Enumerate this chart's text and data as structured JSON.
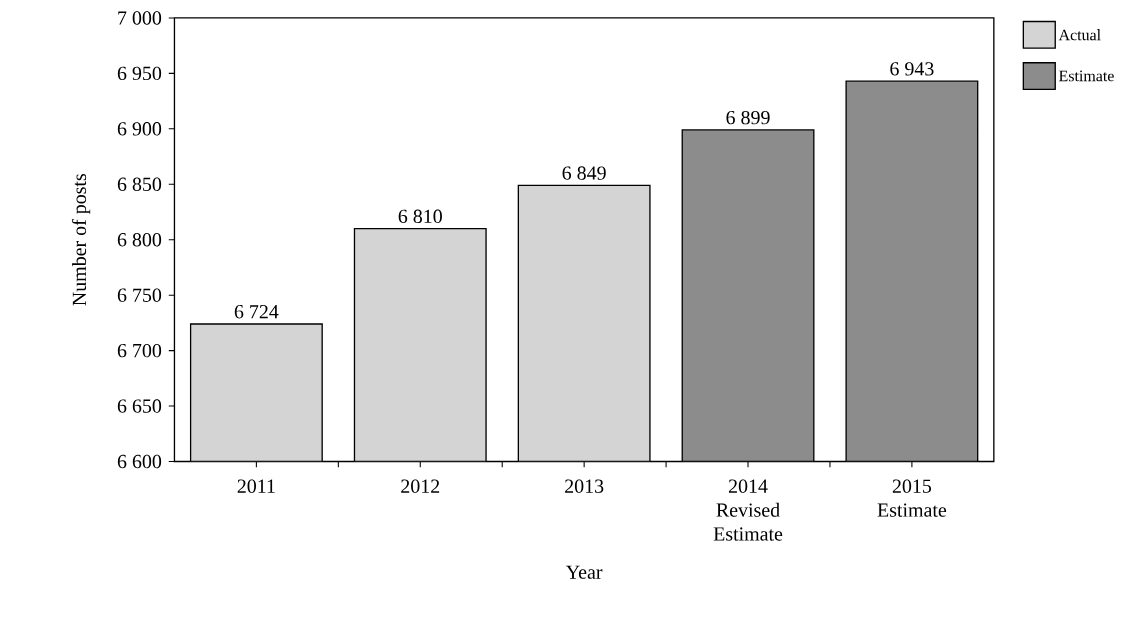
{
  "chart_data": {
    "type": "bar",
    "xlabel": "Year",
    "ylabel": "Number of posts",
    "categories": [
      "2011",
      "2012",
      "2013",
      "2014 Revised Estimate",
      "2015 Estimate"
    ],
    "series": [
      {
        "name": "Actual",
        "color": "#d4d4d4",
        "values": [
          6724,
          6810,
          6849,
          null,
          null
        ],
        "value_labels": [
          "6 724",
          "6 810",
          "6 849",
          null,
          null
        ]
      },
      {
        "name": "Estimate",
        "color": "#8c8c8c",
        "values": [
          null,
          null,
          null,
          6899,
          6943
        ],
        "value_labels": [
          null,
          null,
          null,
          "6 899",
          "6 943"
        ]
      }
    ],
    "ylim": [
      6600,
      7000
    ],
    "yticks": [
      {
        "value": 6600,
        "label": "6 600"
      },
      {
        "value": 6650,
        "label": "6 650"
      },
      {
        "value": 6700,
        "label": "6 700"
      },
      {
        "value": 6750,
        "label": "6 750"
      },
      {
        "value": 6800,
        "label": "6 800"
      },
      {
        "value": 6850,
        "label": "6 850"
      },
      {
        "value": 6900,
        "label": "6 900"
      },
      {
        "value": 6950,
        "label": "6 950"
      },
      {
        "value": 7000,
        "label": "7 000"
      }
    ],
    "grid": false,
    "legend": "top right"
  }
}
